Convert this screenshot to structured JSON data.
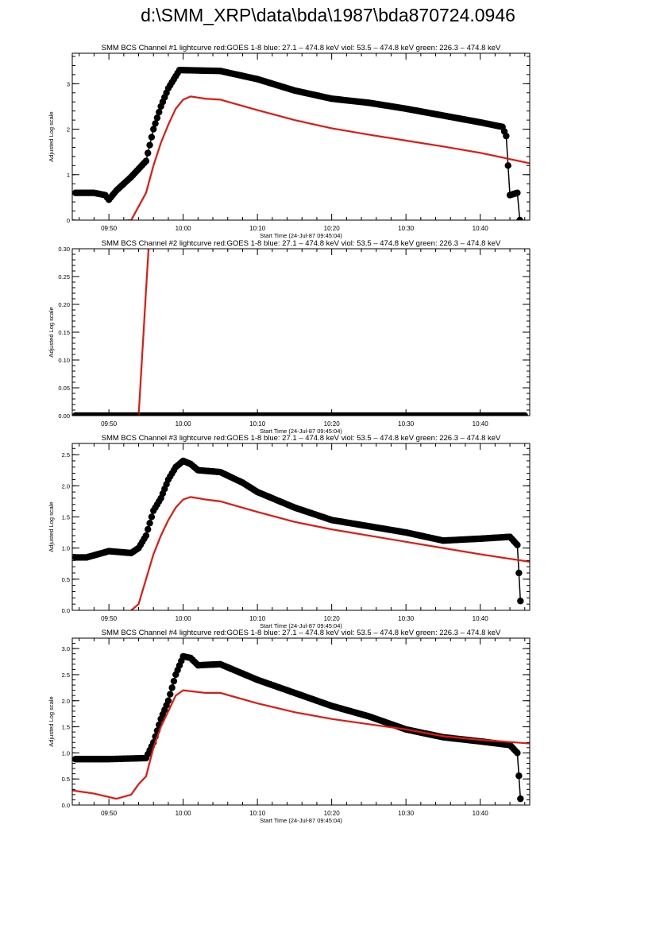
{
  "page_title": "d:\\SMM_XRP\\data\\bda\\1987\\bda870724.0946",
  "colors": {
    "goes": "#e8160c",
    "bcs": "#000000"
  },
  "chart_data": [
    {
      "type": "line",
      "title": "SMM BCS Channel #1 lightcurve  red:GOES 1-8  blue: 27.1 – 474.8 keV  viol: 53.5 – 474.8 keV  green: 226.3 – 474.8 keV",
      "xlabel": "Start Time (24-Jul-87 09:45:04)",
      "ylabel": "Adjusted Log scale",
      "xlim": [
        "09:45:04",
        "10:46:40"
      ],
      "ylim": [
        0,
        3.67
      ],
      "xticks": [
        "09:50",
        "10:00",
        "10:10",
        "10:20",
        "10:30",
        "10:40"
      ],
      "yticks": [
        {
          "v": 0,
          "label": "0"
        },
        {
          "v": 1,
          "label": "1"
        },
        {
          "v": 2,
          "label": "2"
        },
        {
          "v": 3,
          "label": "3"
        }
      ],
      "yminor": 0.2,
      "series": [
        {
          "color": "#000000",
          "marker": "circle",
          "x": [
            "09:45:30",
            "09:48:00",
            "09:49:30",
            "09:50:00",
            "09:51:00",
            "09:53:00",
            "09:55:00",
            "09:56:00",
            "09:57:00",
            "09:58:00",
            "09:59:30",
            "10:05:00",
            "10:10:00",
            "10:15:00",
            "10:20:00",
            "10:25:00",
            "10:30:00",
            "10:35:00",
            "10:40:00",
            "10:43:00",
            "10:43:30",
            "10:44:00",
            "10:45:00",
            "10:45:20"
          ],
          "y": [
            0.6,
            0.6,
            0.55,
            0.45,
            0.65,
            0.95,
            1.3,
            2.0,
            2.5,
            2.9,
            3.3,
            3.28,
            3.1,
            2.85,
            2.67,
            2.58,
            2.45,
            2.3,
            2.15,
            2.05,
            1.85,
            0.55,
            0.6,
            0
          ]
        },
        {
          "color": "#e8160c",
          "marker": "none",
          "x": [
            "09:45:04",
            "09:48:00",
            "09:53:00",
            "09:54:00",
            "09:55:00",
            "09:56:00",
            "09:57:00",
            "09:58:00",
            "09:59:00",
            "10:00:00",
            "10:01:00",
            "10:03:00",
            "10:05:00",
            "10:10:00",
            "10:15:00",
            "10:20:00",
            "10:25:00",
            "10:30:00",
            "10:35:00",
            "10:40:00",
            "10:46:40"
          ],
          "y": [
            0.0,
            -0.05,
            0,
            0.3,
            0.6,
            1.2,
            1.7,
            2.1,
            2.45,
            2.65,
            2.72,
            2.67,
            2.65,
            2.42,
            2.2,
            2.02,
            1.88,
            1.75,
            1.62,
            1.48,
            1.25
          ]
        }
      ]
    },
    {
      "type": "line",
      "title": "SMM BCS Channel #2 lightcurve  red:GOES 1-8  blue: 27.1 – 474.8 keV  viol: 53.5 – 474.8 keV  green: 226.3 – 474.8 keV",
      "xlabel": "Start Time (24-Jul-87 09:45:04)",
      "ylabel": "Adjusted Log scale",
      "xlim": [
        "09:45:04",
        "10:46:40"
      ],
      "ylim": [
        0,
        0.3
      ],
      "xticks": [
        "09:50",
        "10:00",
        "10:10",
        "10:20",
        "10:30",
        "10:40"
      ],
      "yticks": [
        {
          "v": 0,
          "label": "0.00"
        },
        {
          "v": 0.05,
          "label": "0.05"
        },
        {
          "v": 0.1,
          "label": "0.10"
        },
        {
          "v": 0.15,
          "label": "0.15"
        },
        {
          "v": 0.2,
          "label": "0.20"
        },
        {
          "v": 0.25,
          "label": "0.25"
        },
        {
          "v": 0.3,
          "label": "0.30"
        }
      ],
      "yminor": 0.01,
      "series": [
        {
          "color": "#000000",
          "marker": "circle",
          "x": [
            "09:45:30",
            "10:46:00"
          ],
          "y": [
            0,
            0
          ]
        },
        {
          "color": "#e8160c",
          "marker": "none",
          "x": [
            "09:54:00",
            "09:55:20",
            "09:55:40"
          ],
          "y": [
            0,
            0.3,
            0.5
          ]
        }
      ]
    },
    {
      "type": "line",
      "title": "SMM BCS Channel #3 lightcurve  red:GOES 1-8  blue: 27.1 – 474.8 keV  viol: 53.5 – 474.8 keV  green: 226.3 – 474.8 keV",
      "xlabel": "Start Time (24-Jul-87 09:45:04)",
      "ylabel": "Adjusted Log scale",
      "xlim": [
        "09:45:04",
        "10:46:40"
      ],
      "ylim": [
        0,
        2.68
      ],
      "xticks": [
        "09:50",
        "10:00",
        "10:10",
        "10:20",
        "10:30",
        "10:40"
      ],
      "yticks": [
        {
          "v": 0,
          "label": "0.0"
        },
        {
          "v": 0.5,
          "label": "0.5"
        },
        {
          "v": 1,
          "label": "1.0"
        },
        {
          "v": 1.5,
          "label": "1.5"
        },
        {
          "v": 2,
          "label": "2.0"
        },
        {
          "v": 2.5,
          "label": "2.5"
        }
      ],
      "yminor": 0.1,
      "series": [
        {
          "color": "#000000",
          "marker": "circle",
          "x": [
            "09:45:30",
            "09:47:00",
            "09:50:00",
            "09:53:00",
            "09:54:00",
            "09:55:00",
            "09:56:00",
            "09:57:00",
            "09:58:00",
            "09:59:00",
            "10:00:00",
            "10:01:00",
            "10:02:00",
            "10:05:00",
            "10:08:00",
            "10:10:00",
            "10:15:00",
            "10:20:00",
            "10:25:00",
            "10:30:00",
            "10:35:00",
            "10:40:00",
            "10:44:00",
            "10:45:00",
            "10:45:25"
          ],
          "y": [
            0.85,
            0.85,
            0.95,
            0.92,
            1.0,
            1.2,
            1.6,
            1.8,
            2.1,
            2.3,
            2.4,
            2.35,
            2.25,
            2.22,
            2.05,
            1.9,
            1.65,
            1.45,
            1.35,
            1.25,
            1.12,
            1.15,
            1.18,
            1.05,
            0.15
          ]
        },
        {
          "color": "#e8160c",
          "marker": "none",
          "x": [
            "09:53:00",
            "09:54:00",
            "09:55:00",
            "09:56:00",
            "09:57:00",
            "09:58:00",
            "09:59:00",
            "10:00:00",
            "10:01:00",
            "10:03:00",
            "10:05:00",
            "10:10:00",
            "10:15:00",
            "10:20:00",
            "10:25:00",
            "10:30:00",
            "10:35:00",
            "10:40:00",
            "10:46:40"
          ],
          "y": [
            0,
            0.1,
            0.5,
            0.9,
            1.2,
            1.45,
            1.65,
            1.78,
            1.82,
            1.78,
            1.75,
            1.58,
            1.42,
            1.3,
            1.2,
            1.1,
            1.0,
            0.9,
            0.78
          ]
        }
      ]
    },
    {
      "type": "line",
      "title": "SMM BCS Channel #4 lightcurve  red:GOES 1-8  blue: 27.1 – 474.8 keV  viol: 53.5 – 474.8 keV  green: 226.3 – 474.8 keV",
      "xlabel": "Start Time (24-Jul-87 09:45:04)",
      "ylabel": "Adjusted Log scale",
      "xlim": [
        "09:45:04",
        "10:46:40"
      ],
      "ylim": [
        0,
        3.2
      ],
      "xticks": [
        "09:50",
        "10:00",
        "10:10",
        "10:20",
        "10:30",
        "10:40"
      ],
      "yticks": [
        {
          "v": 0,
          "label": "0.0"
        },
        {
          "v": 0.5,
          "label": "0.5"
        },
        {
          "v": 1,
          "label": "1.0"
        },
        {
          "v": 1.5,
          "label": "1.5"
        },
        {
          "v": 2,
          "label": "2.0"
        },
        {
          "v": 2.5,
          "label": "2.5"
        },
        {
          "v": 3,
          "label": "3.0"
        }
      ],
      "yminor": 0.1,
      "series": [
        {
          "color": "#000000",
          "marker": "circle",
          "x": [
            "09:45:30",
            "09:50:00",
            "09:55:00",
            "09:56:00",
            "09:57:00",
            "09:58:00",
            "09:59:00",
            "10:00:00",
            "10:01:00",
            "10:02:00",
            "10:05:00",
            "10:10:00",
            "10:15:00",
            "10:20:00",
            "10:25:00",
            "10:30:00",
            "10:35:00",
            "10:40:00",
            "10:44:00",
            "10:45:00",
            "10:45:25"
          ],
          "y": [
            0.88,
            0.88,
            0.9,
            1.2,
            1.65,
            2.0,
            2.5,
            2.85,
            2.82,
            2.68,
            2.7,
            2.4,
            2.15,
            1.9,
            1.7,
            1.45,
            1.3,
            1.22,
            1.15,
            1.0,
            0.12
          ]
        },
        {
          "color": "#e8160c",
          "marker": "none",
          "x": [
            "09:45:04",
            "09:48:00",
            "09:51:00",
            "09:53:00",
            "09:54:00",
            "09:55:00",
            "09:56:00",
            "09:57:00",
            "09:58:00",
            "09:59:00",
            "10:00:00",
            "10:03:00",
            "10:05:00",
            "10:10:00",
            "10:15:00",
            "10:20:00",
            "10:25:00",
            "10:30:00",
            "10:35:00",
            "10:40:00",
            "10:46:40"
          ],
          "y": [
            0.28,
            0.22,
            0.12,
            0.2,
            0.4,
            0.55,
            1.1,
            1.5,
            1.8,
            2.1,
            2.2,
            2.15,
            2.15,
            1.95,
            1.78,
            1.65,
            1.55,
            1.45,
            1.32,
            1.25,
            1.18
          ]
        }
      ]
    }
  ]
}
